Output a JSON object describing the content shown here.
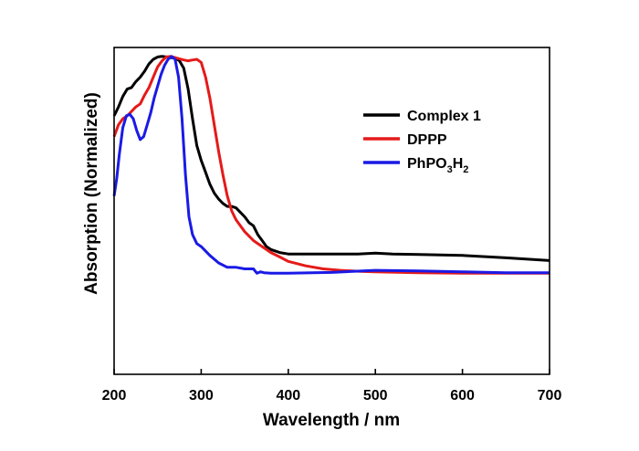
{
  "chart_data": {
    "type": "line",
    "xlabel": "Wavelength / nm",
    "ylabel": "Absorption (Normalized)",
    "xlim": [
      200,
      700
    ],
    "ylim": [
      0,
      1.1
    ],
    "xticks": [
      "200",
      "300",
      "400",
      "500",
      "600",
      "700"
    ],
    "grid": false,
    "legend_position": "top-right",
    "series": [
      {
        "name": "Complex 1",
        "legend_parts": [
          {
            "text": "Complex 1",
            "sub": false
          }
        ],
        "color": "#000000",
        "x": [
          200,
          205,
          210,
          215,
          220,
          225,
          230,
          235,
          240,
          245,
          250,
          255,
          260,
          265,
          270,
          275,
          280,
          285,
          290,
          295,
          300,
          305,
          310,
          315,
          320,
          325,
          330,
          335,
          340,
          345,
          350,
          355,
          360,
          365,
          370,
          375,
          380,
          390,
          400,
          420,
          450,
          480,
          500,
          520,
          550,
          600,
          650,
          700
        ],
        "y": [
          0.87,
          0.9,
          0.935,
          0.96,
          0.965,
          0.985,
          1.0,
          1.02,
          1.045,
          1.06,
          1.068,
          1.07,
          1.068,
          1.066,
          1.064,
          1.055,
          1.03,
          0.96,
          0.86,
          0.77,
          0.72,
          0.68,
          0.64,
          0.61,
          0.59,
          0.575,
          0.565,
          0.565,
          0.56,
          0.545,
          0.53,
          0.51,
          0.5,
          0.47,
          0.45,
          0.43,
          0.42,
          0.41,
          0.405,
          0.405,
          0.405,
          0.405,
          0.408,
          0.405,
          0.403,
          0.4,
          0.392,
          0.383
        ]
      },
      {
        "name": "DPPP",
        "legend_parts": [
          {
            "text": "DPPP",
            "sub": false
          }
        ],
        "color": "#e51a1a",
        "x": [
          200,
          205,
          210,
          215,
          220,
          225,
          230,
          235,
          240,
          245,
          250,
          255,
          260,
          265,
          270,
          275,
          280,
          285,
          290,
          295,
          300,
          305,
          310,
          315,
          320,
          325,
          330,
          335,
          340,
          345,
          350,
          355,
          360,
          370,
          380,
          390,
          400,
          420,
          440,
          460,
          480,
          500,
          550,
          600,
          650,
          700
        ],
        "y": [
          0.8,
          0.84,
          0.86,
          0.87,
          0.885,
          0.9,
          0.91,
          0.94,
          0.965,
          1.0,
          1.035,
          1.055,
          1.068,
          1.07,
          1.066,
          1.062,
          1.058,
          1.055,
          1.058,
          1.06,
          1.05,
          1.0,
          0.93,
          0.84,
          0.75,
          0.67,
          0.6,
          0.55,
          0.52,
          0.5,
          0.48,
          0.465,
          0.45,
          0.43,
          0.41,
          0.395,
          0.38,
          0.365,
          0.355,
          0.35,
          0.347,
          0.345,
          0.342,
          0.34,
          0.34,
          0.34
        ]
      },
      {
        "name": "PhPO3H2",
        "legend_parts": [
          {
            "text": "PhPO",
            "sub": false
          },
          {
            "text": "3",
            "sub": true
          },
          {
            "text": "H",
            "sub": false
          },
          {
            "text": "2",
            "sub": true
          }
        ],
        "color": "#1a1ae6",
        "x": [
          200,
          203,
          206,
          210,
          214,
          218,
          222,
          226,
          230,
          234,
          238,
          242,
          246,
          250,
          254,
          258,
          262,
          266,
          270,
          274,
          278,
          282,
          286,
          290,
          295,
          300,
          310,
          320,
          330,
          340,
          350,
          360,
          364,
          368,
          372,
          380,
          400,
          450,
          500,
          550,
          600,
          650,
          700
        ],
        "y": [
          0.6,
          0.66,
          0.74,
          0.83,
          0.87,
          0.875,
          0.86,
          0.82,
          0.79,
          0.8,
          0.84,
          0.88,
          0.93,
          0.97,
          1.01,
          1.04,
          1.06,
          1.07,
          1.06,
          1.0,
          0.86,
          0.67,
          0.53,
          0.47,
          0.44,
          0.43,
          0.4,
          0.375,
          0.36,
          0.36,
          0.355,
          0.355,
          0.34,
          0.345,
          0.342,
          0.34,
          0.34,
          0.343,
          0.35,
          0.348,
          0.345,
          0.342,
          0.342
        ]
      }
    ]
  }
}
